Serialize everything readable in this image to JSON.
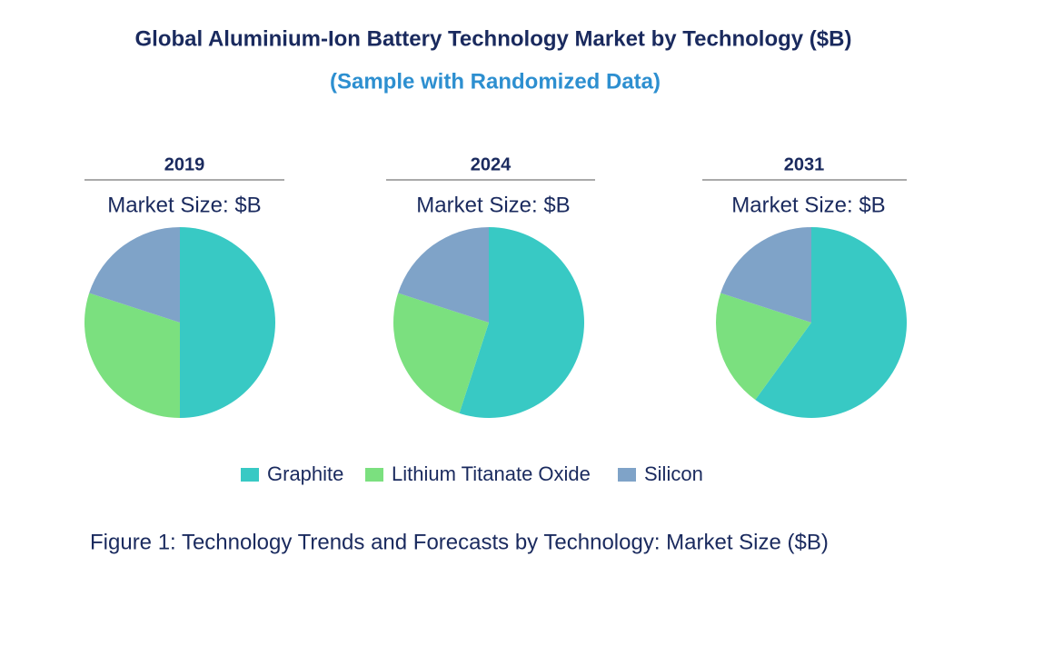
{
  "header": {
    "title": "Global Aluminium-Ion Battery Technology Market by Technology ($B)",
    "subtitle": "(Sample with Randomized Data)"
  },
  "chart_data": [
    {
      "type": "pie",
      "title": "2019",
      "subtitle": "Market Size: $B",
      "categories": [
        "Graphite",
        "Lithium Titanate Oxide",
        "Silicon"
      ],
      "values": [
        50,
        30,
        20
      ],
      "colors": [
        "#38c9c4",
        "#7be07f",
        "#7fa3c8"
      ]
    },
    {
      "type": "pie",
      "title": "2024",
      "subtitle": "Market Size: $B",
      "categories": [
        "Graphite",
        "Lithium Titanate Oxide",
        "Silicon"
      ],
      "values": [
        55,
        25,
        20
      ],
      "colors": [
        "#38c9c4",
        "#7be07f",
        "#7fa3c8"
      ]
    },
    {
      "type": "pie",
      "title": "2031",
      "subtitle": "Market Size: $B",
      "categories": [
        "Graphite",
        "Lithium Titanate Oxide",
        "Silicon"
      ],
      "values": [
        60,
        20,
        20
      ],
      "colors": [
        "#38c9c4",
        "#7be07f",
        "#7fa3c8"
      ]
    }
  ],
  "caption": "Figure 1: Technology Trends and Forecasts by Technology: Market Size ($B)"
}
